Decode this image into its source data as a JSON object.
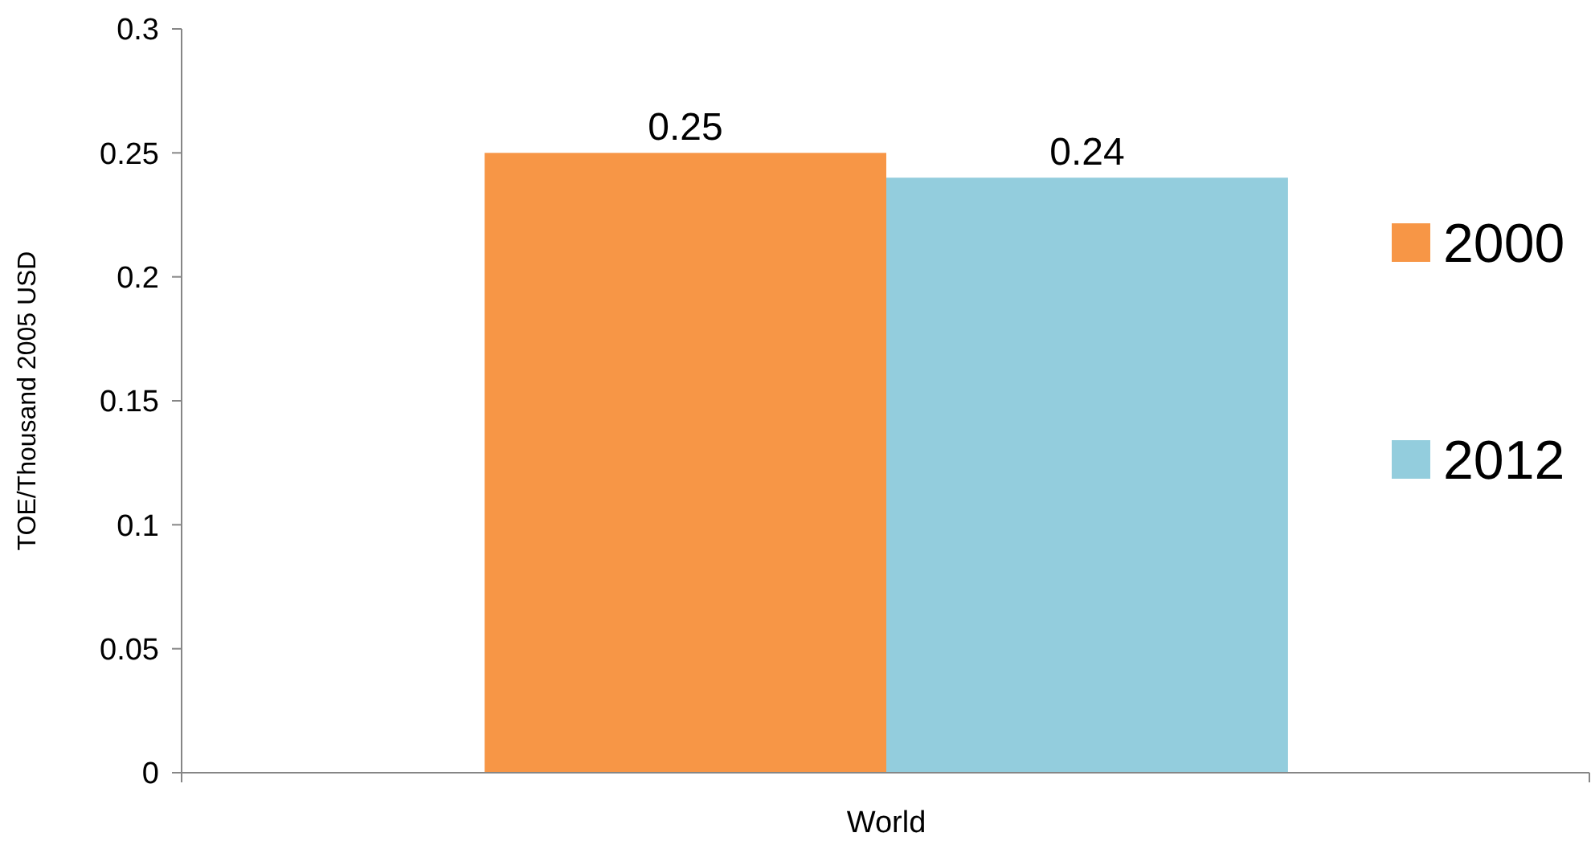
{
  "chart_data": {
    "type": "bar",
    "ylabel": "TOE/Thousand 2005 USD",
    "categories": [
      "World"
    ],
    "series": [
      {
        "name": "2000",
        "color": "#f79646",
        "values": [
          0.25
        ]
      },
      {
        "name": "2012",
        "color": "#93cddd",
        "values": [
          0.24
        ]
      }
    ],
    "ylim": [
      0,
      0.3
    ],
    "yticks": [
      0,
      0.05,
      0.1,
      0.15,
      0.2,
      0.25,
      0.3
    ],
    "data_labels": true,
    "legend": "right",
    "grid": false
  }
}
